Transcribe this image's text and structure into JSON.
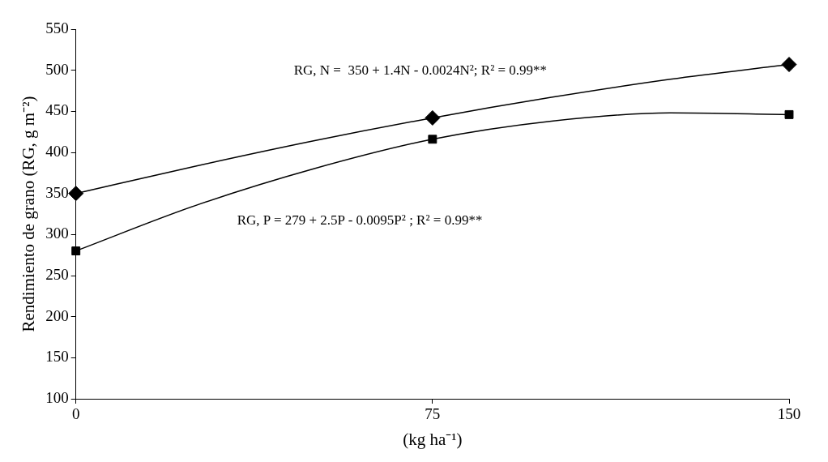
{
  "chart_data": {
    "type": "line",
    "xlabel": "(kg ha⁻¹)",
    "ylabel": "Rendimiento de grano (RG, g m⁻²)",
    "xlim": [
      0,
      150
    ],
    "xticks": [
      0,
      75,
      150
    ],
    "ylim": [
      100,
      550
    ],
    "yticks": [
      100,
      150,
      200,
      250,
      300,
      350,
      400,
      450,
      500,
      550
    ],
    "series": [
      {
        "color": "#000000",
        "marker": "none",
        "x": [
          0,
          25,
          50,
          75,
          100,
          125,
          150
        ],
        "values": [
          350,
          383,
          414,
          442,
          467,
          489,
          507
        ]
      },
      {
        "color": "#000000",
        "marker": "none",
        "x": [
          0,
          25,
          50,
          75,
          100,
          125,
          150
        ],
        "values": [
          280,
          335,
          380,
          416,
          438,
          448,
          446
        ]
      },
      {
        "type": "scatter",
        "color": "#000000",
        "marker": "diamond",
        "x": [
          0,
          75,
          150
        ],
        "values": [
          350,
          442,
          507
        ]
      },
      {
        "type": "scatter",
        "color": "#000000",
        "marker": "square",
        "x": [
          0,
          75,
          150
        ],
        "values": [
          280,
          416,
          446
        ]
      }
    ],
    "annotations": [
      "RG, N =  350 + 1.4N - 0.0024N²; R² = 0.99**",
      "RG, P = 279 + 2.5P - 0.0095P² ; R² = 0.99**"
    ]
  }
}
